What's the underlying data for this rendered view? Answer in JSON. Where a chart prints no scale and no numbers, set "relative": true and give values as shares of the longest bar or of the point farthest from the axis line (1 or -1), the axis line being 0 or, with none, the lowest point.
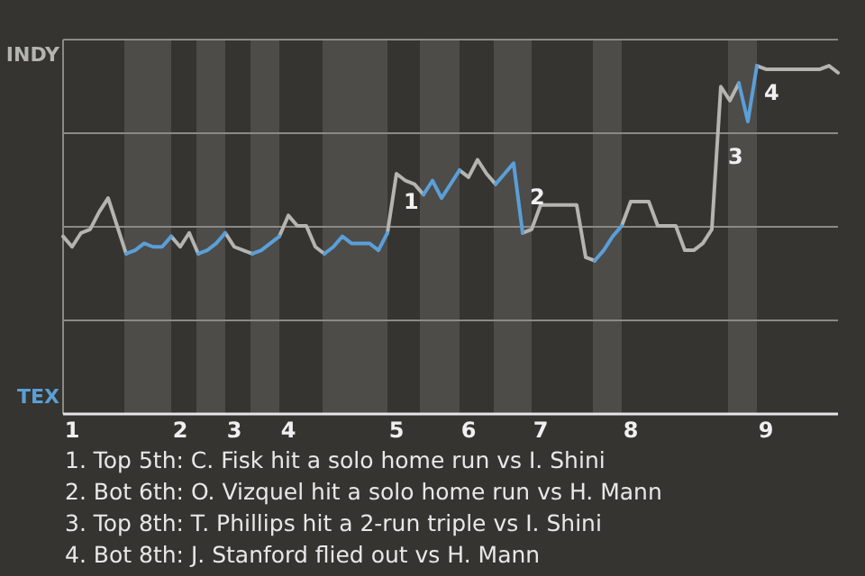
{
  "chart_data": {
    "type": "line",
    "relative": true,
    "categories": [
      null,
      "1",
      null,
      null,
      null,
      null,
      null,
      null,
      null,
      null,
      null,
      null,
      null,
      "2",
      null,
      null,
      null,
      null,
      null,
      "3",
      null,
      null,
      null,
      null,
      null,
      "4",
      null,
      null,
      null,
      null,
      null,
      null,
      null,
      null,
      null,
      null,
      null,
      "5",
      null,
      null,
      null,
      null,
      null,
      null,
      null,
      "6",
      null,
      null,
      null,
      null,
      null,
      null,
      null,
      "7",
      null,
      null,
      null,
      null,
      null,
      null,
      null,
      null,
      null,
      "8",
      null,
      null,
      null,
      null,
      null,
      null,
      null,
      null,
      null,
      null,
      null,
      null,
      null,
      null,
      "9",
      null,
      null,
      null,
      null,
      null,
      null,
      null,
      null
    ],
    "grid": "y",
    "legend": "left",
    "marker": "none",
    "line_style": "solid",
    "series": [
      {
        "name": "INDY",
        "color": "#b4b4b0",
        "values": [
          0.51,
          0.48,
          0.52,
          0.53,
          0.58,
          0.62,
          0.54,
          0.46,
          null,
          null,
          null,
          null,
          0.51,
          0.48,
          0.52,
          0.46,
          null,
          null,
          0.52,
          0.48,
          0.47,
          0.46,
          null,
          null,
          0.51,
          0.57,
          0.54,
          0.54,
          0.48,
          0.46,
          null,
          null,
          null,
          null,
          null,
          null,
          0.52,
          0.69,
          0.67,
          0.66,
          0.63,
          null,
          null,
          null,
          0.7,
          0.68,
          0.73,
          0.69,
          0.66,
          null,
          null,
          0.52,
          0.53,
          0.6,
          0.6,
          0.6,
          0.6,
          0.6,
          0.45,
          0.44,
          null,
          null,
          0.54,
          0.61,
          0.61,
          0.61,
          0.54,
          0.54,
          0.54,
          0.47,
          0.47,
          0.49,
          0.53,
          0.94,
          0.9,
          0.95,
          null,
          1,
          0.99,
          0.99,
          0.99,
          0.99,
          0.99,
          0.99,
          0.99,
          1,
          0.98
        ]
      },
      {
        "name": "TEX",
        "color": "#5a9fd8",
        "values": [
          null,
          null,
          null,
          null,
          null,
          null,
          null,
          0.46,
          0.47,
          0.49,
          0.48,
          0.48,
          0.51,
          null,
          null,
          0.46,
          0.47,
          0.49,
          0.52,
          null,
          null,
          0.46,
          0.47,
          0.49,
          0.51,
          null,
          null,
          null,
          null,
          0.46,
          0.48,
          0.51,
          0.49,
          0.49,
          0.49,
          0.47,
          0.52,
          null,
          null,
          null,
          0.63,
          0.67,
          0.62,
          0.66,
          0.7,
          null,
          null,
          null,
          0.66,
          0.69,
          0.72,
          0.52,
          null,
          null,
          null,
          null,
          null,
          null,
          null,
          0.44,
          0.47,
          0.51,
          0.54,
          null,
          null,
          null,
          null,
          null,
          null,
          null,
          null,
          null,
          null,
          null,
          null,
          0.95,
          0.84,
          1,
          null,
          null,
          null,
          null,
          null,
          null,
          null,
          null,
          null
        ]
      }
    ],
    "annotations": [
      "1",
      "2",
      "3",
      "4",
      "1. Top 5th: C. Fisk hit a solo home run vs I. Shini",
      "2. Bot 6th: O. Vizquel hit a solo home run vs H. Mann",
      "3. Top 8th: T. Phillips hit a 2-run triple vs I. Shini",
      "4. Bot 8th: J. Stanford flied out vs H. Mann"
    ]
  }
}
